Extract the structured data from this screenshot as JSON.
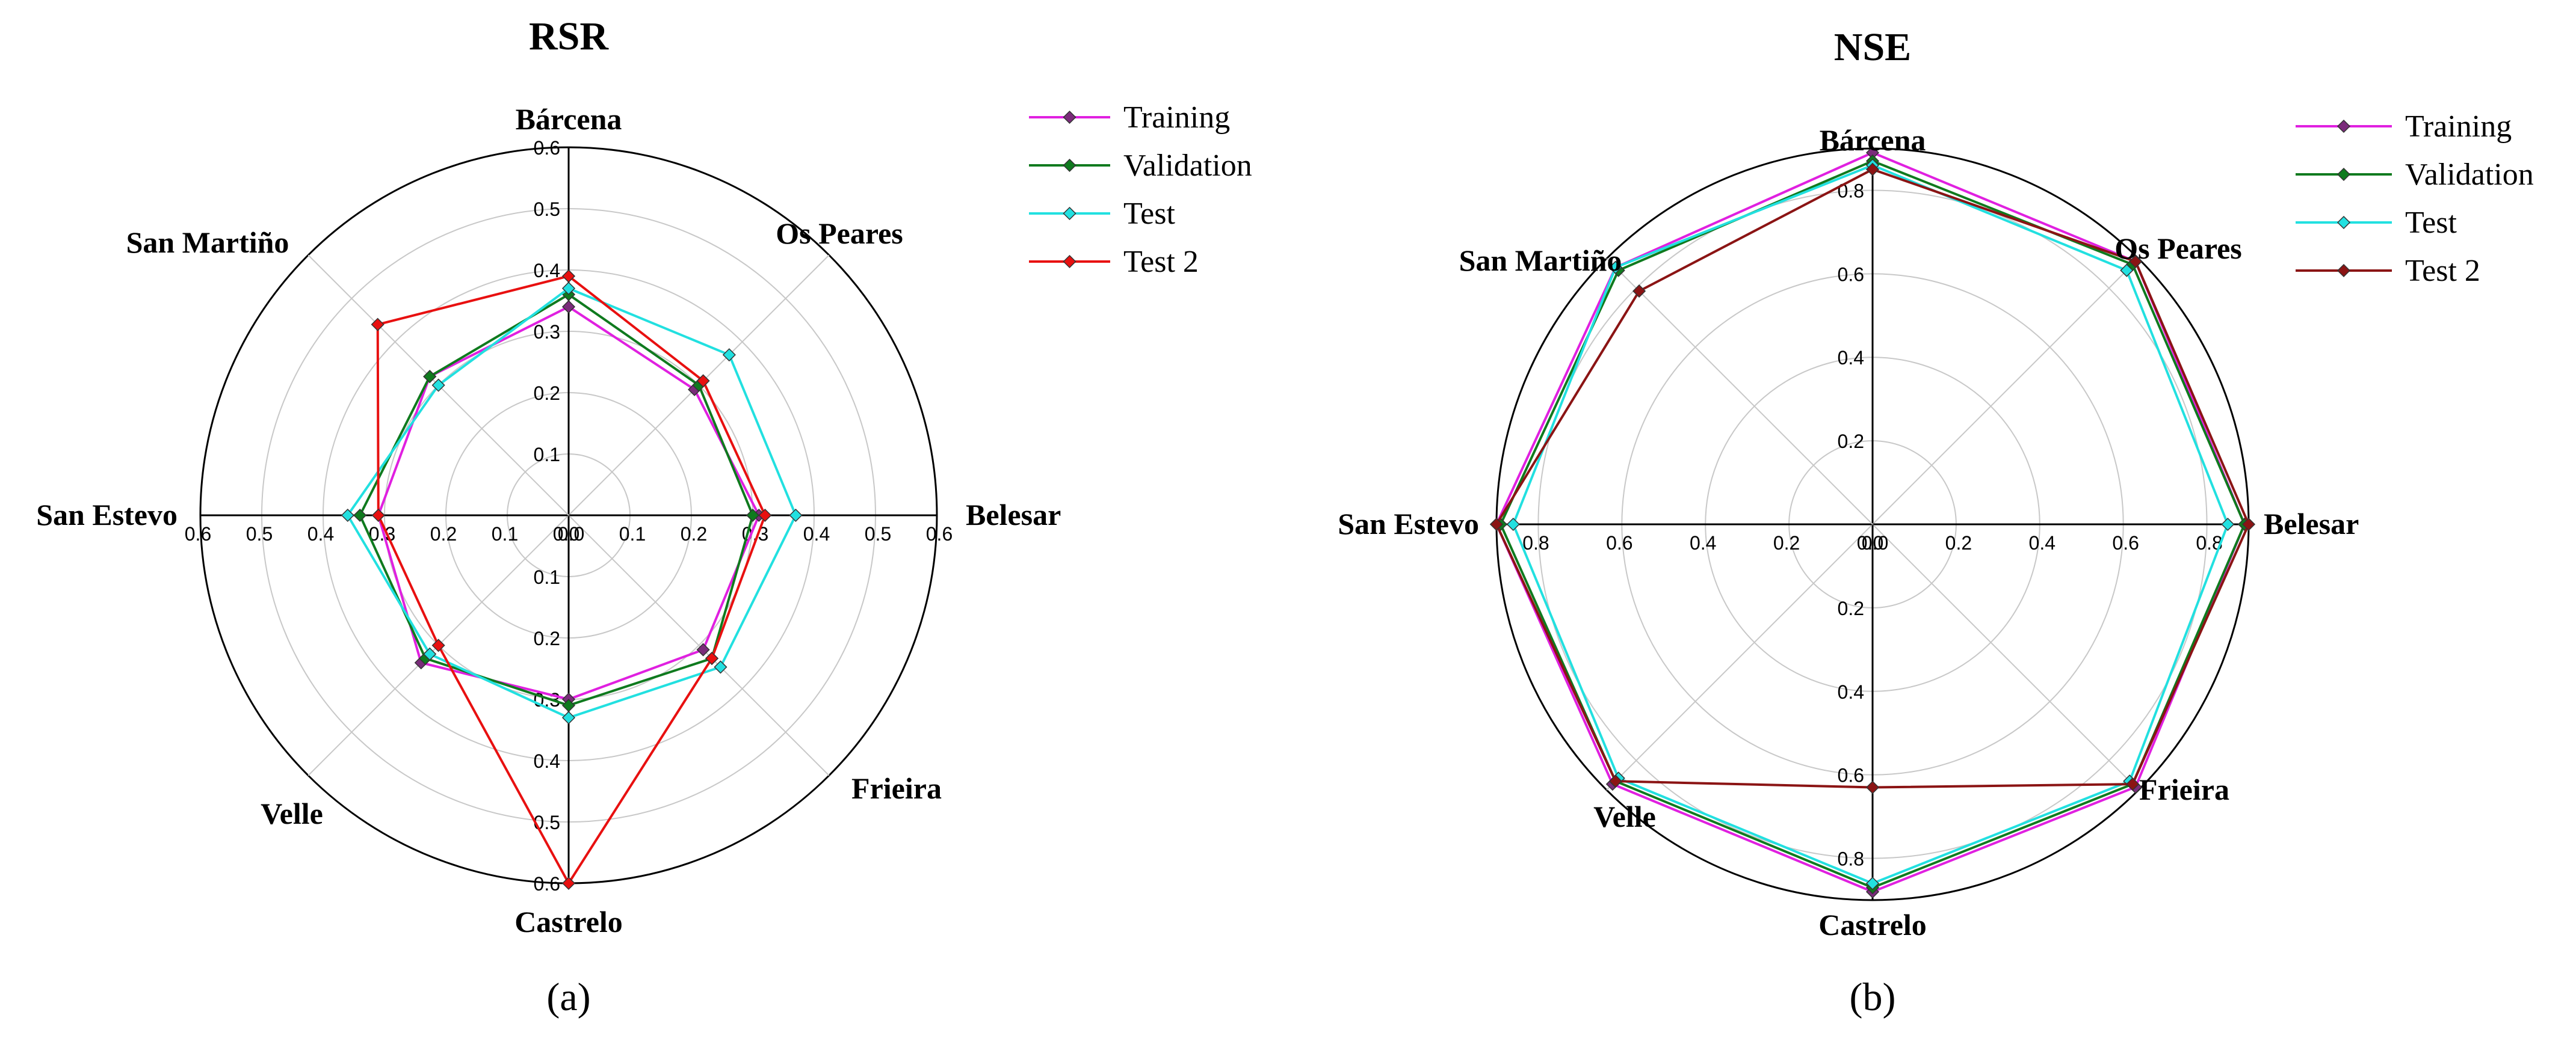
{
  "captions": [
    "(a)",
    "(b)"
  ],
  "chart_data": [
    {
      "type": "radar",
      "title": "RSR",
      "caption_letter": "a",
      "categories": [
        "Bárcena",
        "Os Peares",
        "Belesar",
        "Frieira",
        "Castrelo",
        "Velle",
        "San Estevo",
        "San Martiño"
      ],
      "rlim": [
        0,
        0.6
      ],
      "ticks": [
        0.0,
        0.1,
        0.2,
        0.3,
        0.4,
        0.5,
        0.6
      ],
      "tick_labels": [
        "0.0",
        "0.1",
        "0.2",
        "0.3",
        "0.4",
        "0.5",
        "0.6"
      ],
      "grid": true,
      "legend_position": "top-right",
      "series": [
        {
          "name": "Training",
          "color": "#e020e0",
          "marker_color": "#7a2c7a",
          "values": [
            0.34,
            0.29,
            0.31,
            0.31,
            0.3,
            0.34,
            0.31,
            0.32
          ]
        },
        {
          "name": "Validation",
          "color": "#0f7a1e",
          "marker_color": "#0f7a1e",
          "values": [
            0.36,
            0.3,
            0.3,
            0.33,
            0.31,
            0.33,
            0.34,
            0.32
          ]
        },
        {
          "name": "Test",
          "color": "#22e0e0",
          "marker_color": "#22e0e0",
          "values": [
            0.37,
            0.37,
            0.37,
            0.35,
            0.33,
            0.32,
            0.36,
            0.3
          ]
        },
        {
          "name": "Test 2",
          "color": "#e81010",
          "marker_color": "#e81010",
          "values": [
            0.39,
            0.31,
            0.32,
            0.33,
            0.6,
            0.3,
            0.31,
            0.44
          ]
        }
      ]
    },
    {
      "type": "radar",
      "title": "NSE",
      "caption_letter": "b",
      "categories": [
        "Bárcena",
        "Os Peares",
        "Belesar",
        "Frieira",
        "Castrelo",
        "Velle",
        "San Estevo",
        "San Martiño"
      ],
      "rlim": [
        0,
        0.9
      ],
      "ticks": [
        0.0,
        0.2,
        0.4,
        0.6,
        0.8
      ],
      "tick_labels": [
        "0.0",
        "0.2",
        "0.4",
        "0.6",
        "0.8"
      ],
      "grid": true,
      "legend_position": "top-right",
      "series": [
        {
          "name": "Training",
          "color": "#e020e0",
          "marker_color": "#7a2c7a",
          "values": [
            0.89,
            0.89,
            0.89,
            0.89,
            0.88,
            0.88,
            0.9,
            0.87
          ]
        },
        {
          "name": "Validation",
          "color": "#0f7a1e",
          "marker_color": "#0f7a1e",
          "values": [
            0.87,
            0.88,
            0.89,
            0.88,
            0.87,
            0.87,
            0.89,
            0.86
          ]
        },
        {
          "name": "Test",
          "color": "#22e0e0",
          "marker_color": "#22e0e0",
          "values": [
            0.86,
            0.86,
            0.85,
            0.87,
            0.86,
            0.86,
            0.86,
            0.87
          ]
        },
        {
          "name": "Test 2",
          "color": "#8b1414",
          "marker_color": "#8b1414",
          "values": [
            0.85,
            0.89,
            0.9,
            0.88,
            0.63,
            0.87,
            0.9,
            0.79
          ]
        }
      ]
    }
  ]
}
